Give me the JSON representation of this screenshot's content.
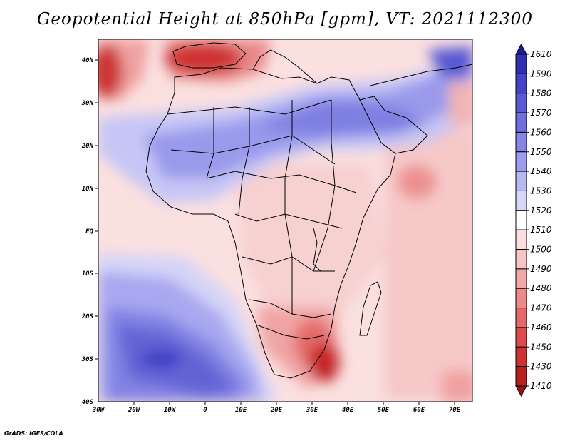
{
  "title": "Geopotential Height at 850hPa [gpm], VT: 2021112300",
  "credit": "GrADS: IGES/COLA",
  "map": {
    "region": "Africa",
    "variable": "Geopotential Height",
    "level": "850hPa",
    "units": "gpm",
    "valid_time": "2021112300",
    "lon_range": [
      -30,
      75
    ],
    "lat_range": [
      -40,
      45
    ],
    "lon_ticks": [
      "30W",
      "20W",
      "10W",
      "0",
      "10E",
      "20E",
      "30E",
      "40E",
      "50E",
      "60E",
      "70E"
    ],
    "lat_ticks": [
      "40N",
      "30N",
      "20N",
      "10N",
      "EQ",
      "10S",
      "20S",
      "30S",
      "40S"
    ]
  },
  "colorbar": {
    "labels": [
      "1610",
      "1590",
      "1580",
      "1570",
      "1560",
      "1550",
      "1540",
      "1530",
      "1520",
      "1510",
      "1500",
      "1490",
      "1480",
      "1470",
      "1460",
      "1450",
      "1430",
      "1410"
    ],
    "colors": [
      "#1f1896",
      "#2f2fb4",
      "#4343c8",
      "#5a5ad4",
      "#6e6ede",
      "#8585e6",
      "#9d9dee",
      "#b8b8f4",
      "#d6d6fa",
      "#ffffff",
      "#fcdede",
      "#f8c4c4",
      "#f2a8a8",
      "#ec8a8a",
      "#e46a6a",
      "#dc4c4c",
      "#cf3232",
      "#b81e1e",
      "#9e1010"
    ]
  },
  "highs_lows": [
    {
      "label": "high",
      "lon": -14,
      "lat": -30,
      "value": 1590
    },
    {
      "label": "low",
      "lon": -3,
      "lat": 40,
      "value": 1430
    },
    {
      "label": "low",
      "lon": 30,
      "lat": -31,
      "value": 1430
    },
    {
      "label": "low",
      "lon": -29,
      "lat": 38,
      "value": 1450
    }
  ]
}
